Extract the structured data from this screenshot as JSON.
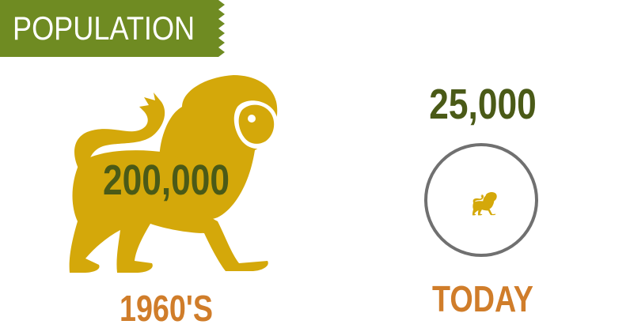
{
  "banner": {
    "title": "POPULATION"
  },
  "past": {
    "count": "200,000",
    "period": "1960'S"
  },
  "present": {
    "count": "25,000",
    "period": "TODAY"
  },
  "colors": {
    "banner": "#6f8b22",
    "lion": "#d4a80a",
    "count_text": "#4a5a17",
    "period_text": "#d07d2a",
    "circle": "#707070"
  },
  "icons": {
    "past": "lion-icon",
    "present": "lion-icon-small"
  },
  "population_ratio": 0.125
}
